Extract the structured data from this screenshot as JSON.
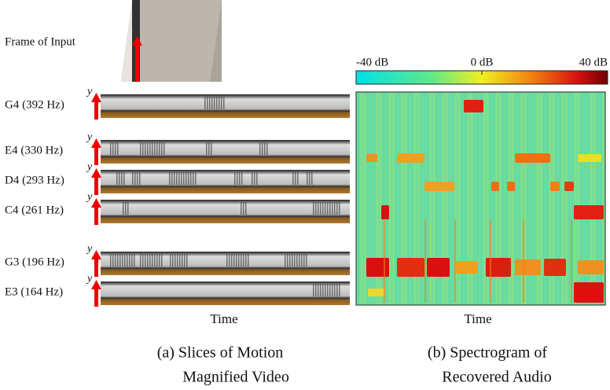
{
  "frame_label": "Frame of Input",
  "rows": [
    {
      "label": "G4 (392 Hz)",
      "y_label": "y"
    },
    {
      "label": "E4 (330 Hz)",
      "y_label": "y"
    },
    {
      "label": "D4 (293 Hz)",
      "y_label": "y"
    },
    {
      "label": "C4 (261 Hz)",
      "y_label": "y"
    },
    {
      "label": "G3 (196 Hz)",
      "y_label": "y"
    },
    {
      "label": "E3 (164 Hz)",
      "y_label": "y"
    }
  ],
  "slices_x_label": "Time",
  "spectrogram_x_label": "Time",
  "colorbar": {
    "lim": [
      -40,
      40
    ],
    "ticks": [
      {
        "value": -40,
        "label": "-40 dB"
      },
      {
        "value": 0,
        "label": "0 dB"
      },
      {
        "value": 40,
        "label": "40 dB"
      }
    ]
  },
  "caption_a": [
    "(a) Slices of Motion",
    "Magnified Video"
  ],
  "caption_b": [
    "(b) Spectrogram of",
    "Recovered Audio"
  ]
}
